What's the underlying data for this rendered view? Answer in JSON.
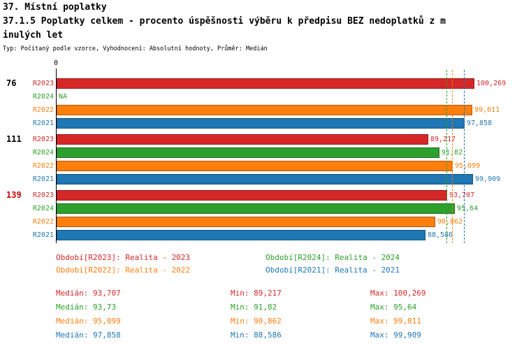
{
  "colors": {
    "R2023": "#d62728",
    "R2024": "#2ca02c",
    "R2022": "#ff7f0e",
    "R2021": "#1f77b4",
    "highlight_red": "#cc0000",
    "black": "#000000"
  },
  "chart_data": {
    "type": "bar",
    "orientation": "horizontal",
    "title": "37. Místní poplatky",
    "subtitle_line1": "37.1.5 Poplatky celkem - procento úspěšnosti výběru k předpisu BEZ nedoplatků z m",
    "subtitle_line2": "inulých let",
    "note": "Typ: Počítaný podle vzorce, Vyhodnocení: Absolutní hodnoty, Průměr: Medián",
    "x_axis": {
      "origin_label": "0",
      "min": 0,
      "max": 100.269
    },
    "series_order": [
      "R2023",
      "R2024",
      "R2022",
      "R2021"
    ],
    "groups": [
      {
        "label": "76",
        "label_color": "#000000",
        "bars": [
          {
            "series": "R2023",
            "value": 100.269,
            "value_label": "100,269"
          },
          {
            "series": "R2024",
            "value": null,
            "value_label": "NA"
          },
          {
            "series": "R2022",
            "value": 99.811,
            "value_label": "99,811"
          },
          {
            "series": "R2021",
            "value": 97.858,
            "value_label": "97,858"
          }
        ]
      },
      {
        "label": "111",
        "label_color": "#000000",
        "bars": [
          {
            "series": "R2023",
            "value": 89.217,
            "value_label": "89,217"
          },
          {
            "series": "R2024",
            "value": 91.82,
            "value_label": "91,82"
          },
          {
            "series": "R2022",
            "value": 95.099,
            "value_label": "95,099"
          },
          {
            "series": "R2021",
            "value": 99.909,
            "value_label": "99,909"
          }
        ]
      },
      {
        "label": "139",
        "label_color": "#cc0000",
        "bars": [
          {
            "series": "R2023",
            "value": 93.707,
            "value_label": "93,707"
          },
          {
            "series": "R2024",
            "value": 95.64,
            "value_label": "95,64"
          },
          {
            "series": "R2022",
            "value": 90.862,
            "value_label": "90,862"
          },
          {
            "series": "R2021",
            "value": 88.586,
            "value_label": "88,586"
          }
        ]
      }
    ],
    "median_lines": [
      {
        "series": "R2023",
        "value": 93.707
      },
      {
        "series": "R2024",
        "value": 93.73
      },
      {
        "series": "R2022",
        "value": 95.099
      },
      {
        "series": "R2021",
        "value": 97.858
      }
    ]
  },
  "legend": [
    {
      "series": "R2023",
      "label": "Období[R2023]: Realita - 2023",
      "row": 0,
      "col": 0
    },
    {
      "series": "R2024",
      "label": "Období[R2024]: Realita - 2024",
      "row": 0,
      "col": 1
    },
    {
      "series": "R2022",
      "label": "Období[R2022]: Realita - 2022",
      "row": 1,
      "col": 0
    },
    {
      "series": "R2021",
      "label": "Období[R2021]: Realita - 2021",
      "row": 1,
      "col": 1
    }
  ],
  "stats": [
    {
      "series": "R2023",
      "median": "Medián: 93,707",
      "min": "Min: 89,217",
      "max": "Max: 100,269"
    },
    {
      "series": "R2024",
      "median": "Medián: 93,73",
      "min": "Min: 91,82",
      "max": "Max: 95,64"
    },
    {
      "series": "R2022",
      "median": "Medián: 95,099",
      "min": "Min: 90,862",
      "max": "Max: 99,811"
    },
    {
      "series": "R2021",
      "median": "Medián: 97,858",
      "min": "Min: 88,586",
      "max": "Max: 99,909"
    }
  ]
}
